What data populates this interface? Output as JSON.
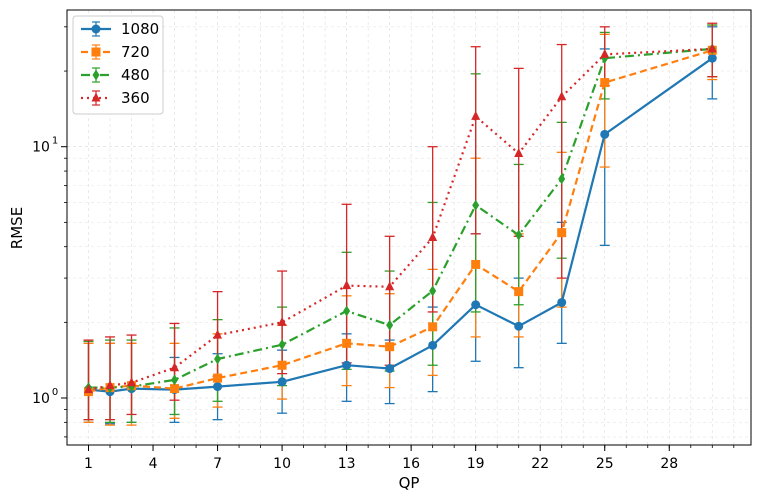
{
  "chart_data": {
    "type": "line",
    "xlabel": "QP",
    "ylabel": "RMSE",
    "yscale": "log",
    "ylim": [
      0.65,
      35
    ],
    "xlim": [
      0,
      31.8
    ],
    "xticks": [
      1,
      4,
      7,
      10,
      13,
      16,
      19,
      22,
      25,
      28
    ],
    "xtick_labels": [
      "1",
      "4",
      "7",
      "10",
      "13",
      "16",
      "19",
      "22",
      "25",
      "28"
    ],
    "yticks": [
      1,
      10
    ],
    "ytick_base": "10",
    "ytick_exponents": [
      "0",
      "1"
    ],
    "grid": true,
    "legend_position": "top-left",
    "x": [
      1,
      2,
      3,
      5,
      7,
      10,
      13,
      15,
      17,
      19,
      21,
      23,
      25,
      30
    ],
    "series": [
      {
        "name": "1080",
        "color": "#1f77b4",
        "linestyle": "solid",
        "marker": "circle",
        "values": [
          1.08,
          1.06,
          1.09,
          1.08,
          1.11,
          1.16,
          1.35,
          1.31,
          1.62,
          2.35,
          1.93,
          2.4,
          11.2,
          22.5
        ],
        "err_low": [
          0.8,
          0.79,
          0.8,
          0.8,
          0.82,
          0.87,
          0.97,
          0.95,
          1.06,
          1.4,
          1.32,
          1.65,
          4.05,
          15.5
        ],
        "err_high": [
          1.65,
          1.65,
          1.65,
          1.45,
          1.5,
          1.55,
          1.8,
          1.7,
          2.3,
          4.5,
          3.0,
          5.0,
          24.5,
          30.0
        ]
      },
      {
        "name": "720",
        "color": "#ff7f0e",
        "linestyle": "dashed",
        "marker": "square",
        "values": [
          1.06,
          1.1,
          1.12,
          1.09,
          1.2,
          1.35,
          1.65,
          1.6,
          1.92,
          3.4,
          2.65,
          4.55,
          18.0,
          24.2
        ],
        "err_low": [
          0.8,
          0.78,
          0.78,
          0.83,
          0.92,
          0.99,
          1.12,
          1.1,
          1.23,
          1.75,
          1.75,
          2.3,
          8.3,
          18.5
        ],
        "err_high": [
          1.65,
          1.65,
          1.65,
          1.65,
          1.8,
          1.95,
          2.55,
          2.6,
          3.25,
          9.0,
          4.5,
          9.5,
          28.0,
          30.5
        ]
      },
      {
        "name": "480",
        "color": "#2ca02c",
        "linestyle": "dashdot",
        "marker": "diamond",
        "values": [
          1.1,
          1.1,
          1.11,
          1.18,
          1.43,
          1.63,
          2.22,
          1.95,
          2.67,
          5.85,
          4.45,
          7.45,
          22.5,
          24.5
        ],
        "err_low": [
          0.82,
          0.8,
          0.8,
          0.86,
          0.97,
          1.12,
          1.3,
          1.28,
          1.35,
          2.2,
          2.35,
          3.6,
          15.5,
          19.0
        ],
        "err_high": [
          1.68,
          1.7,
          1.7,
          1.9,
          2.05,
          2.3,
          3.8,
          3.2,
          6.0,
          19.5,
          8.5,
          12.5,
          28.5,
          30.5
        ]
      },
      {
        "name": "360",
        "color": "#d62728",
        "linestyle": "dotted",
        "marker": "triangle",
        "values": [
          1.08,
          1.12,
          1.15,
          1.32,
          1.78,
          2.0,
          2.8,
          2.77,
          4.35,
          13.2,
          9.4,
          15.8,
          23.3,
          24.5
        ],
        "err_low": [
          0.82,
          0.82,
          0.86,
          0.98,
          1.22,
          1.25,
          1.38,
          1.35,
          2.2,
          4.5,
          4.4,
          3.0,
          17.5,
          19.0
        ],
        "err_high": [
          1.7,
          1.75,
          1.78,
          1.98,
          2.65,
          3.2,
          5.9,
          4.4,
          10.0,
          25.0,
          20.5,
          25.5,
          30.0,
          31.0
        ]
      }
    ]
  }
}
